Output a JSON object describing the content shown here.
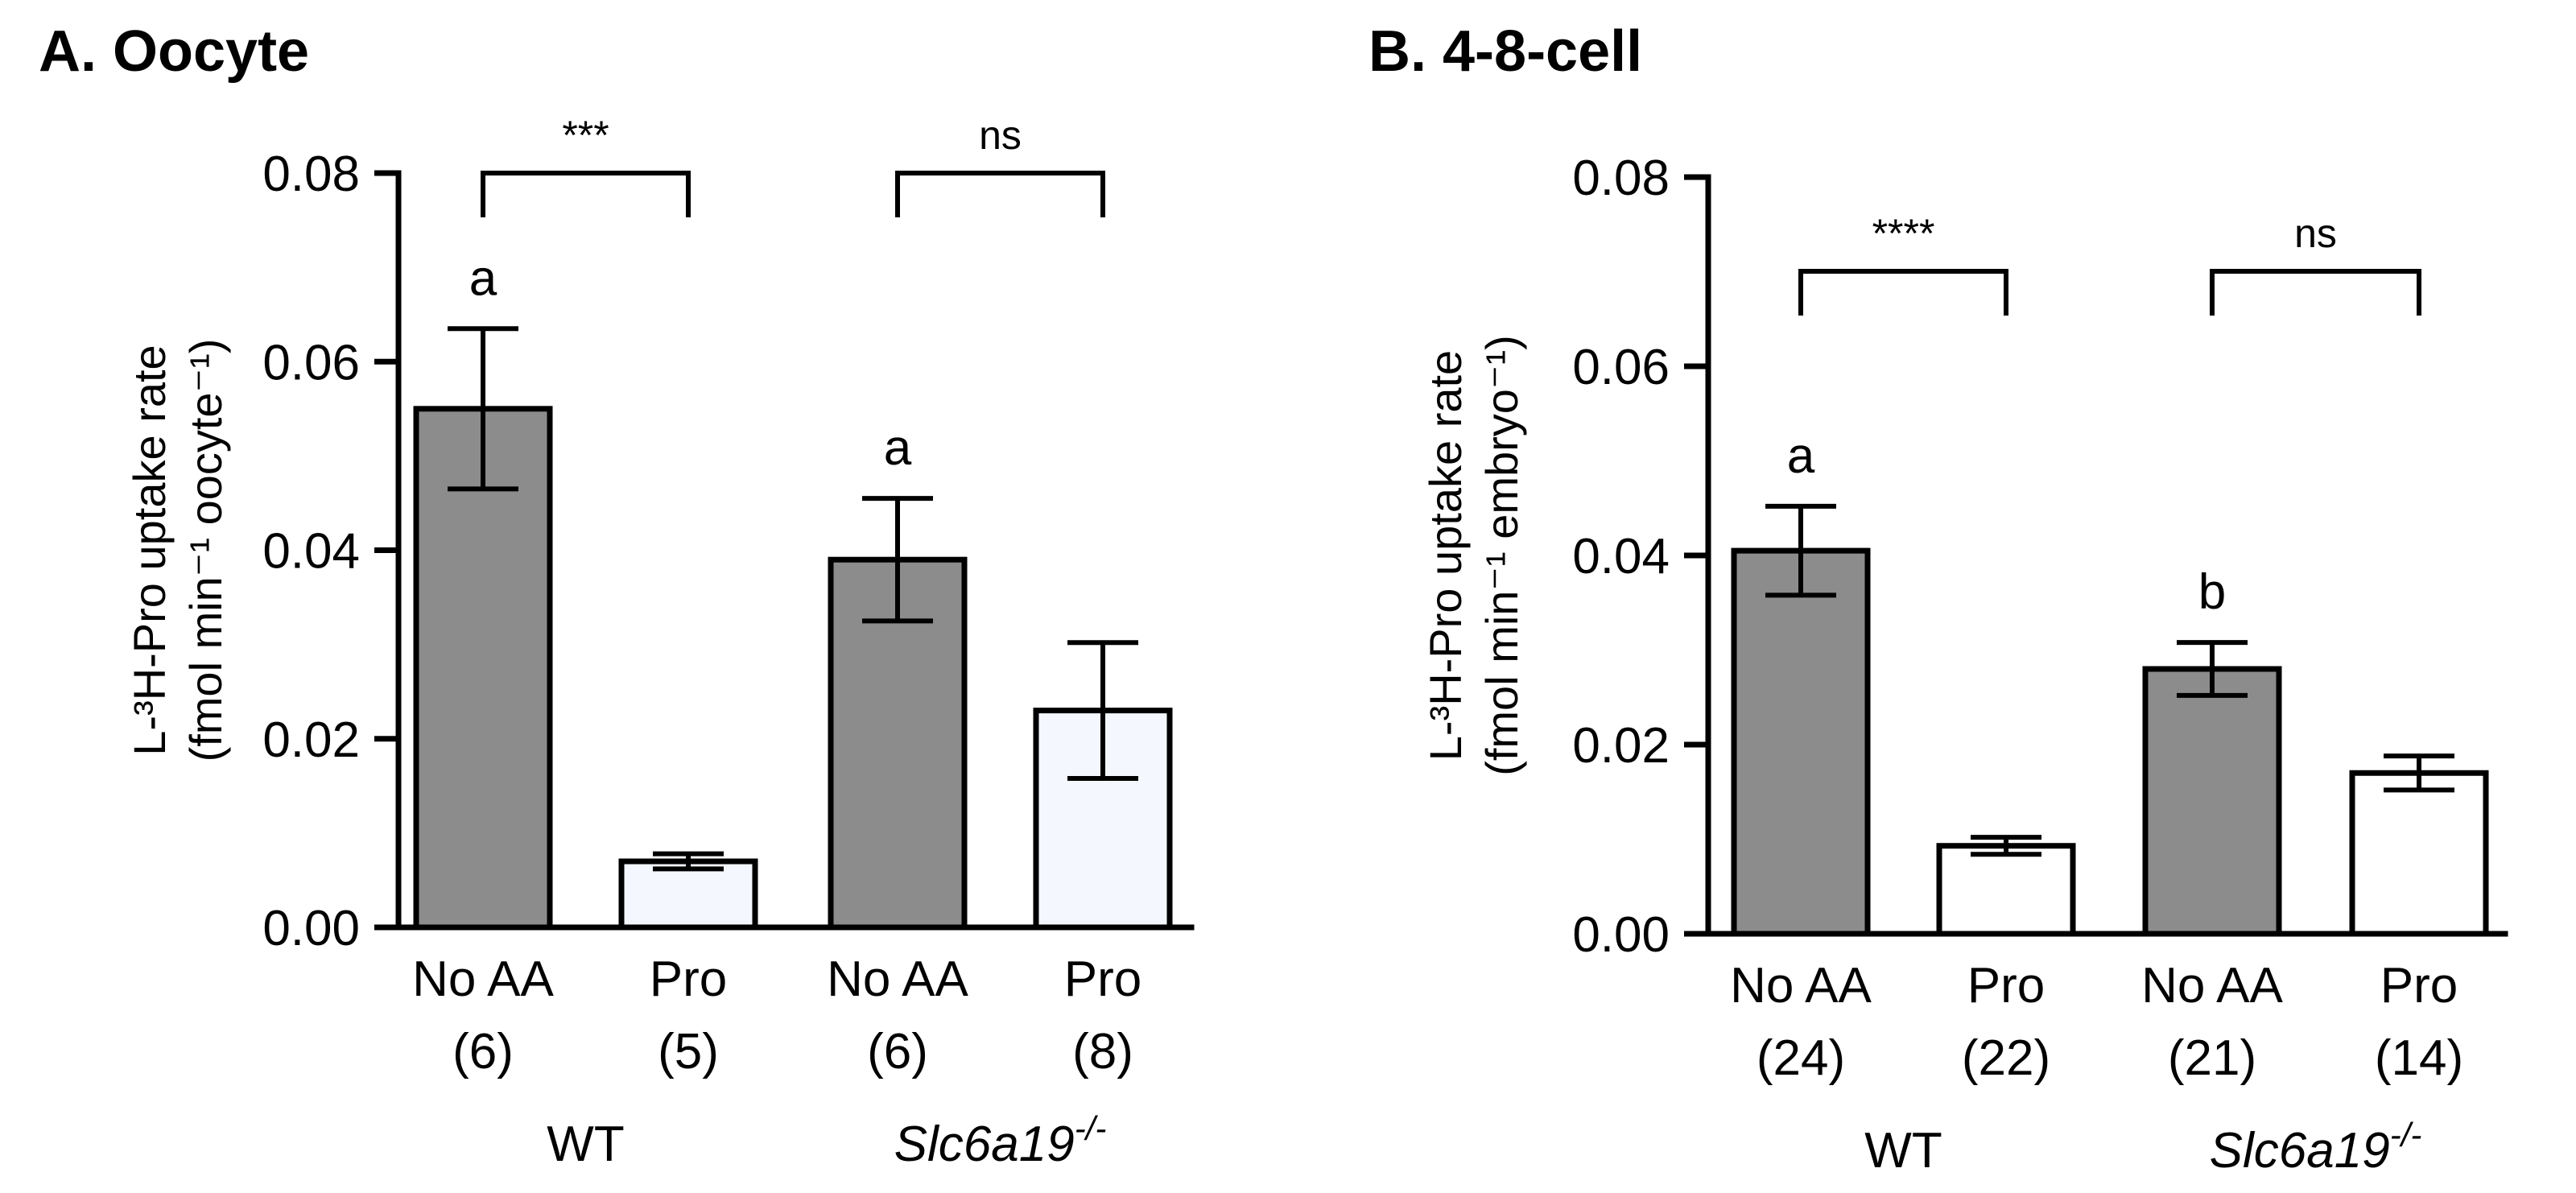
{
  "chart_data": [
    {
      "type": "bar",
      "title": "A. Oocyte",
      "ylabel_line1": "L-³H-Pro uptake rate",
      "ylabel_line2": "(fmol min⁻¹ oocyte⁻¹)",
      "xlabel": "",
      "ylim": [
        0,
        0.08
      ],
      "yticks": [
        "0.00",
        "0.02",
        "0.04",
        "0.06",
        "0.08"
      ],
      "ytick_values": [
        0,
        0.02,
        0.04,
        0.06,
        0.08
      ],
      "categories": [
        "No AA",
        "Pro",
        "No AA",
        "Pro"
      ],
      "n_labels": [
        "(6)",
        "(5)",
        "(6)",
        "(8)"
      ],
      "values": [
        0.055,
        0.007,
        0.039,
        0.023
      ],
      "errors": [
        0.0085,
        0.0008,
        0.0065,
        0.0072
      ],
      "fills": [
        "#8c8c8c",
        "#f4f8fe",
        "#8c8c8c",
        "#f4f8fe"
      ],
      "letters": [
        "a",
        "",
        "a",
        ""
      ],
      "groups": [
        {
          "name": "WT",
          "italic": false,
          "members": [
            0,
            1
          ]
        },
        {
          "name": "Slc6a19",
          "sup": "-/-",
          "italic": true,
          "members": [
            2,
            3
          ]
        }
      ],
      "significance": [
        {
          "pair": [
            0,
            1
          ],
          "label": "***"
        },
        {
          "pair": [
            2,
            3
          ],
          "label": "ns"
        }
      ]
    },
    {
      "type": "bar",
      "title": "B. 4-8-cell",
      "ylabel_line1": "L-³H-Pro uptake rate",
      "ylabel_line2": "(fmol min⁻¹ embryo⁻¹)",
      "xlabel": "",
      "ylim": [
        0,
        0.08
      ],
      "yticks": [
        "0.00",
        "0.02",
        "0.04",
        "0.06",
        "0.08"
      ],
      "ytick_values": [
        0,
        0.02,
        0.04,
        0.06,
        0.08
      ],
      "categories": [
        "No AA",
        "Pro",
        "No AA",
        "Pro"
      ],
      "n_labels": [
        "(24)",
        "(22)",
        "(21)",
        "(14)"
      ],
      "values": [
        0.0405,
        0.0093,
        0.028,
        0.017
      ],
      "errors": [
        0.0047,
        0.0009,
        0.0028,
        0.0018
      ],
      "fills": [
        "#8c8c8c",
        "#ffffff",
        "#8c8c8c",
        "#ffffff"
      ],
      "letters": [
        "a",
        "",
        "b",
        ""
      ],
      "groups": [
        {
          "name": "WT",
          "italic": false,
          "members": [
            0,
            1
          ]
        },
        {
          "name": "Slc6a19",
          "sup": "-/-",
          "italic": true,
          "members": [
            2,
            3
          ]
        }
      ],
      "significance": [
        {
          "pair": [
            0,
            1
          ],
          "label": "****"
        },
        {
          "pair": [
            2,
            3
          ],
          "label": "ns"
        }
      ]
    }
  ]
}
